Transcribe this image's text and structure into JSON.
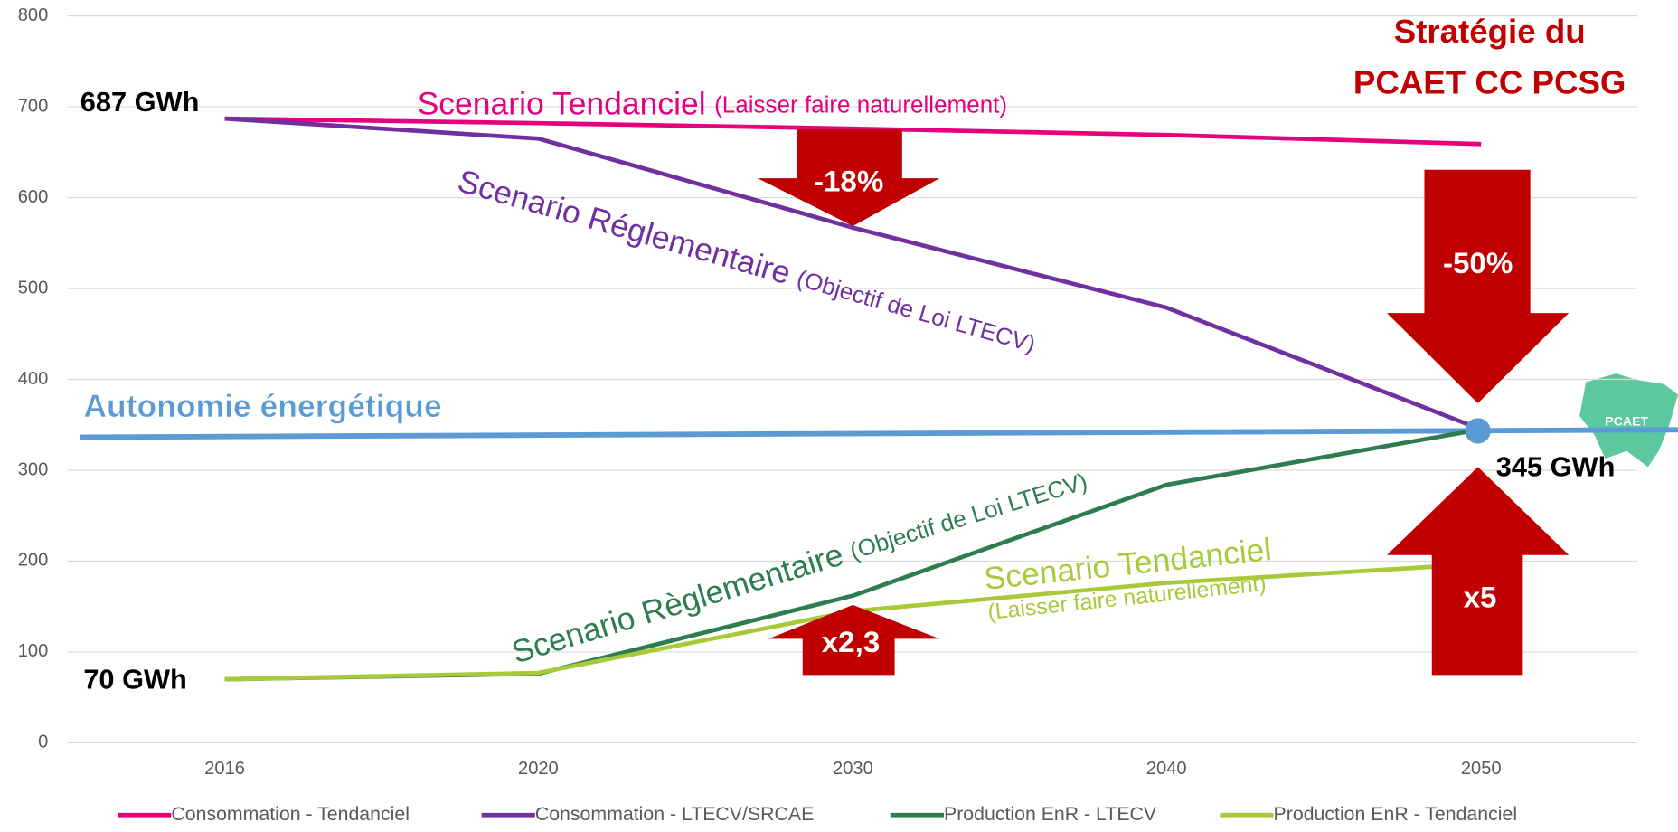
{
  "chart_data": {
    "type": "line",
    "categories": [
      "2016",
      "2020",
      "2030",
      "2040",
      "2050"
    ],
    "series": [
      {
        "name": "Consommation - Tendanciel",
        "color": "#e6007e",
        "values": [
          687,
          682,
          676,
          669,
          659
        ]
      },
      {
        "name": "Consommation - LTECV/SRCAE",
        "color": "#7030a0",
        "values": [
          687,
          665,
          567,
          479,
          345
        ]
      },
      {
        "name": "Production EnR - LTECV",
        "color": "#2e7d4f",
        "values": [
          70,
          76,
          162,
          284,
          345
        ]
      },
      {
        "name": "Production EnR - Tendanciel",
        "color": "#a8c93a",
        "values": [
          70,
          77,
          145,
          176,
          197
        ]
      }
    ],
    "ylim": [
      0,
      800
    ],
    "yticks": [
      0,
      100,
      200,
      300,
      400,
      500,
      600,
      700,
      800
    ],
    "grid": true,
    "legend": "bottom",
    "title_lines": [
      "Stratégie du",
      "PCAET CC PCSG"
    ],
    "value_annotations": [
      "687 GWh",
      "70 GWh",
      "345 GWh"
    ],
    "autonomy_label": "Autonomie énergétique",
    "scenario_labels": [
      {
        "text": "Scenario Tendanciel",
        "note": "(Laisser faire naturellement)"
      },
      {
        "text": "Scenario Réglementaire",
        "note": "(Objectif de Loi LTECV)"
      },
      {
        "text": "Scenario Règlementaire",
        "note": "(Objectif de Loi LTECV)"
      },
      {
        "text": "Scenario Tendanciel",
        "note": "(Laisser faire naturellement)"
      }
    ],
    "arrows": [
      "-18%",
      "-50%",
      "x2,3",
      "x5"
    ],
    "logo": "PCAET"
  }
}
